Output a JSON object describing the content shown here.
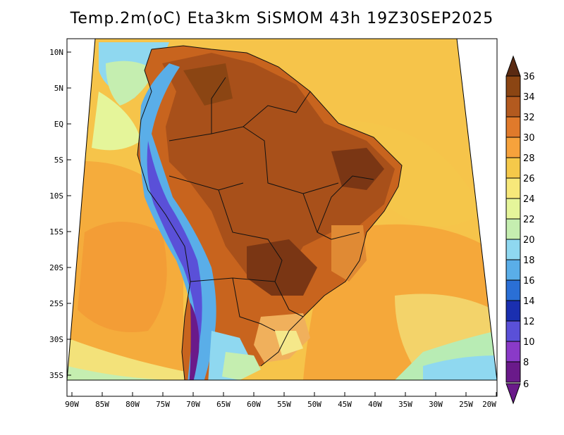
{
  "title": "Temp.2m(oC) Eta3km SiSMOM 43h 19Z30SEP2025",
  "map": {
    "lat_labels": [
      "10N",
      "5N",
      "EQ",
      "5S",
      "10S",
      "15S",
      "20S",
      "25S",
      "30S",
      "35S"
    ],
    "lon_labels": [
      "90W",
      "85W",
      "80W",
      "75W",
      "70W",
      "65W",
      "60W",
      "55W",
      "50W",
      "45W",
      "40W",
      "35W",
      "30W",
      "25W",
      "20W"
    ],
    "lat_range": [
      -38,
      11
    ],
    "lon_range": [
      -91,
      -20
    ]
  },
  "colorbar": {
    "levels": [
      "36",
      "34",
      "32",
      "30",
      "28",
      "26",
      "24",
      "22",
      "20",
      "18",
      "16",
      "14",
      "12",
      "10",
      "8",
      "6"
    ],
    "colors": [
      "#5a2a12",
      "#8b4513",
      "#b35a1f",
      "#e07a2b",
      "#f6a23c",
      "#f5c94a",
      "#f7e87a",
      "#e5f59a",
      "#c5eeb0",
      "#8fd8f0",
      "#5aaee8",
      "#2a6fd6",
      "#1a2fb0",
      "#5a50d8",
      "#8a3ac8",
      "#6a1a8a"
    ]
  }
}
